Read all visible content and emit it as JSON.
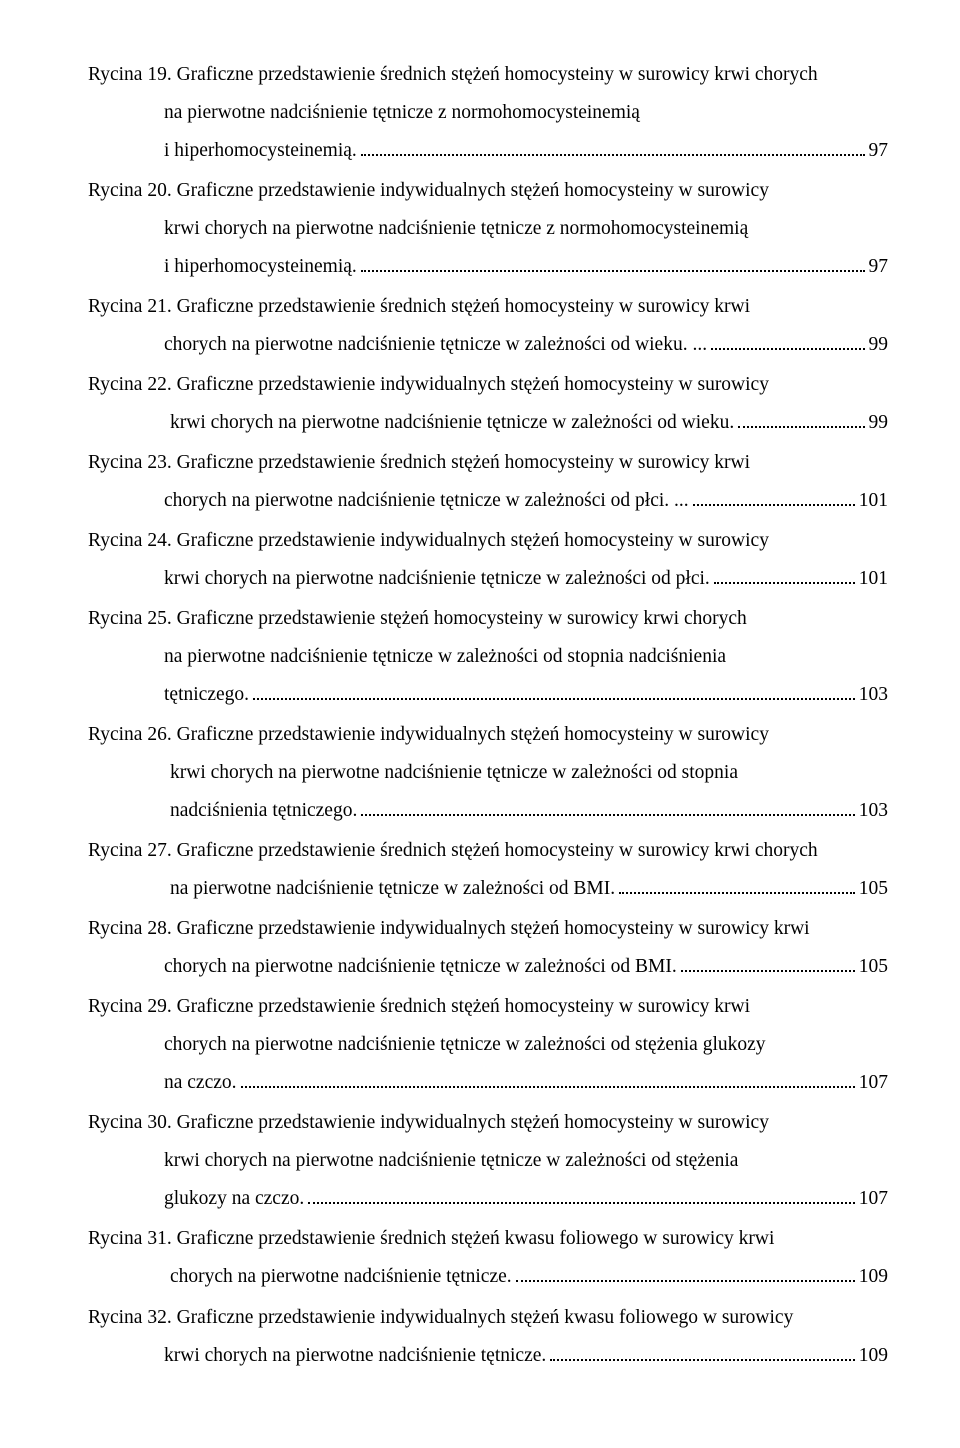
{
  "entries": [
    {
      "lines": [
        "Rycina 19. Graficzne przedstawienie średnich stężeń homocysteiny w surowicy krwi chorych",
        "na pierwotne nadciśnienie tętnicze z normohomocysteinemią",
        "i hiperhomocysteinemią."
      ],
      "indent": [
        "",
        "indent",
        "indent"
      ],
      "page": "97"
    },
    {
      "lines": [
        "Rycina 20. Graficzne przedstawienie indywidualnych stężeń homocysteiny w surowicy",
        "krwi chorych na pierwotne nadciśnienie tętnicze z normohomocysteinemią",
        "i hiperhomocysteinemią."
      ],
      "indent": [
        "",
        "indent",
        "indent"
      ],
      "page": "97"
    },
    {
      "lines": [
        "Rycina 21. Graficzne przedstawienie średnich stężeń homocysteiny w surowicy krwi",
        "chorych na pierwotne nadciśnienie tętnicze w zależności od wieku. ..."
      ],
      "indent": [
        "",
        "indent"
      ],
      "page": "99"
    },
    {
      "lines": [
        "Rycina 22. Graficzne przedstawienie indywidualnych stężeń homocysteiny w surowicy",
        "krwi chorych na pierwotne nadciśnienie tętnicze w zależności od wieku."
      ],
      "indent": [
        "",
        "indent2"
      ],
      "page": "99"
    },
    {
      "lines": [
        "Rycina 23. Graficzne przedstawienie średnich stężeń homocysteiny w surowicy krwi",
        "chorych na pierwotne nadciśnienie tętnicze w zależności od płci. ..."
      ],
      "indent": [
        "",
        "indent"
      ],
      "page": "101"
    },
    {
      "lines": [
        "Rycina 24. Graficzne przedstawienie indywidualnych stężeń homocysteiny w surowicy",
        "krwi chorych na pierwotne nadciśnienie tętnicze w zależności od płci."
      ],
      "indent": [
        "",
        "indent"
      ],
      "page": "101"
    },
    {
      "lines": [
        "Rycina 25. Graficzne przedstawienie stężeń homocysteiny w surowicy krwi chorych",
        "na pierwotne nadciśnienie tętnicze w zależności od stopnia nadciśnienia",
        "tętniczego."
      ],
      "indent": [
        "",
        "indent",
        "indent"
      ],
      "page": "103"
    },
    {
      "lines": [
        "Rycina 26. Graficzne przedstawienie indywidualnych stężeń homocysteiny w surowicy",
        "krwi chorych na pierwotne nadciśnienie tętnicze w zależności od stopnia",
        "nadciśnienia tętniczego."
      ],
      "indent": [
        "",
        "indent2",
        "indent2"
      ],
      "page": "103"
    },
    {
      "lines": [
        "Rycina 27. Graficzne przedstawienie średnich stężeń homocysteiny w surowicy krwi chorych",
        "na pierwotne nadciśnienie tętnicze w zależności od BMI."
      ],
      "indent": [
        "",
        "indent2"
      ],
      "page": "105"
    },
    {
      "lines": [
        "Rycina 28. Graficzne przedstawienie indywidualnych stężeń homocysteiny w surowicy krwi",
        "chorych na pierwotne nadciśnienie tętnicze w zależności od BMI."
      ],
      "indent": [
        "",
        "indent"
      ],
      "page": "105"
    },
    {
      "lines": [
        "Rycina 29. Graficzne przedstawienie średnich stężeń homocysteiny w surowicy krwi",
        "chorych na pierwotne nadciśnienie tętnicze w zależności od stężenia glukozy",
        "na czczo."
      ],
      "indent": [
        "",
        "indent",
        "indent"
      ],
      "page": "107"
    },
    {
      "lines": [
        "Rycina 30. Graficzne przedstawienie indywidualnych stężeń homocysteiny w surowicy",
        "krwi chorych na pierwotne nadciśnienie tętnicze w zależności od stężenia",
        "glukozy na czczo."
      ],
      "indent": [
        "",
        "indent",
        "indent"
      ],
      "page": "107"
    },
    {
      "lines": [
        "Rycina 31. Graficzne przedstawienie średnich stężeń kwasu foliowego w surowicy krwi",
        "chorych na pierwotne nadciśnienie tętnicze."
      ],
      "indent": [
        "",
        "indent2"
      ],
      "page": "109"
    },
    {
      "lines": [
        "Rycina 32. Graficzne przedstawienie indywidualnych stężeń kwasu foliowego w surowicy",
        "krwi chorych na pierwotne nadciśnienie tętnicze."
      ],
      "indent": [
        "",
        "indent"
      ],
      "page": "109"
    }
  ]
}
